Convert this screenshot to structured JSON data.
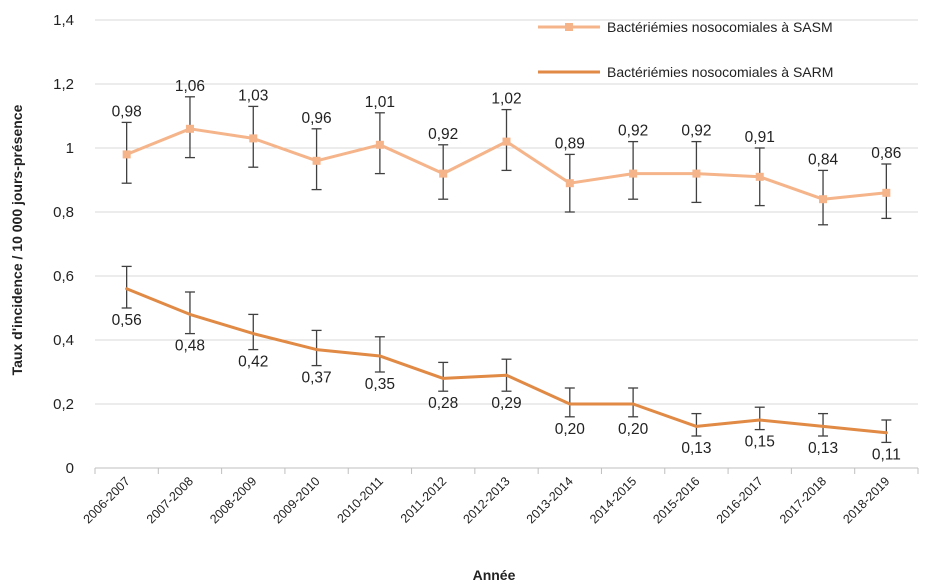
{
  "chart_data": {
    "type": "line",
    "xlabel": "Année",
    "ylabel": "Taux d'incidence / 10 000 jours-présence",
    "ylim": [
      0,
      1.4
    ],
    "yticks": [
      0,
      0.2,
      0.4,
      0.6,
      0.8,
      1,
      1.2,
      1.4
    ],
    "ytick_labels": [
      "0",
      "0,2",
      "0,4",
      "0,6",
      "0,8",
      "1",
      "1,2",
      "1,4"
    ],
    "grid": true,
    "legend_position": "top-right",
    "categories": [
      "2006-2007",
      "2007-2008",
      "2008-2009",
      "2009-2010",
      "2010-2011",
      "2011-2012",
      "2012-2013",
      "2013-2014",
      "2014-2015",
      "2015-2016",
      "2016-2017",
      "2017-2018",
      "2018-2019"
    ],
    "series": [
      {
        "name": "Bactériémies nosocomiales à SASM",
        "color": "#f5b48a",
        "marker": "square",
        "values": [
          0.98,
          1.06,
          1.03,
          0.96,
          1.01,
          0.92,
          1.02,
          0.89,
          0.92,
          0.92,
          0.91,
          0.84,
          0.86
        ],
        "labels": [
          "0,98",
          "1,06",
          "1,03",
          "0,96",
          "1,01",
          "0,92",
          "1,02",
          "0,89",
          "0,92",
          "0,92",
          "0,91",
          "0,84",
          "0,86"
        ],
        "error_low": [
          0.89,
          0.97,
          0.94,
          0.87,
          0.92,
          0.84,
          0.93,
          0.8,
          0.84,
          0.83,
          0.82,
          0.76,
          0.78
        ],
        "error_high": [
          1.08,
          1.16,
          1.13,
          1.06,
          1.11,
          1.01,
          1.12,
          0.98,
          1.02,
          1.02,
          1.0,
          0.93,
          0.95
        ]
      },
      {
        "name": "Bactériémies nosocomiales à SARM",
        "color": "#e08a45",
        "marker": "none",
        "values": [
          0.56,
          0.48,
          0.42,
          0.37,
          0.35,
          0.28,
          0.29,
          0.2,
          0.2,
          0.13,
          0.15,
          0.13,
          0.11
        ],
        "labels": [
          "0,56",
          "0,48",
          "0,42",
          "0,37",
          "0,35",
          "0,28",
          "0,29",
          "0,20",
          "0,20",
          "0,13",
          "0,15",
          "0,13",
          "0,11"
        ],
        "error_low": [
          0.5,
          0.42,
          0.37,
          0.32,
          0.3,
          0.24,
          0.24,
          0.16,
          0.16,
          0.1,
          0.12,
          0.1,
          0.08
        ],
        "error_high": [
          0.63,
          0.55,
          0.48,
          0.43,
          0.41,
          0.33,
          0.34,
          0.25,
          0.25,
          0.17,
          0.19,
          0.17,
          0.15
        ]
      }
    ]
  }
}
